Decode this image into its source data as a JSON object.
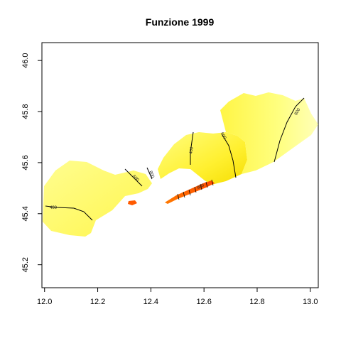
{
  "chart_data": {
    "type": "map",
    "title": "Funzione 1999",
    "xlim": [
      11.99,
      13.03
    ],
    "ylim": [
      45.11,
      46.07
    ],
    "x_ticks": [
      "12.0",
      "12.2",
      "12.4",
      "12.6",
      "12.8",
      "13.0"
    ],
    "y_ticks": [
      "45.2",
      "45.4",
      "45.6",
      "45.8",
      "46.0"
    ],
    "contour_labels": [
      "400",
      "600",
      "800",
      "400",
      "600",
      "800",
      "800"
    ],
    "colors": {
      "low": "#fffd80",
      "mid": "#ffff33",
      "deep": "#f0d000",
      "high": "#ffffb0",
      "hotspot": "#ff6600"
    }
  }
}
